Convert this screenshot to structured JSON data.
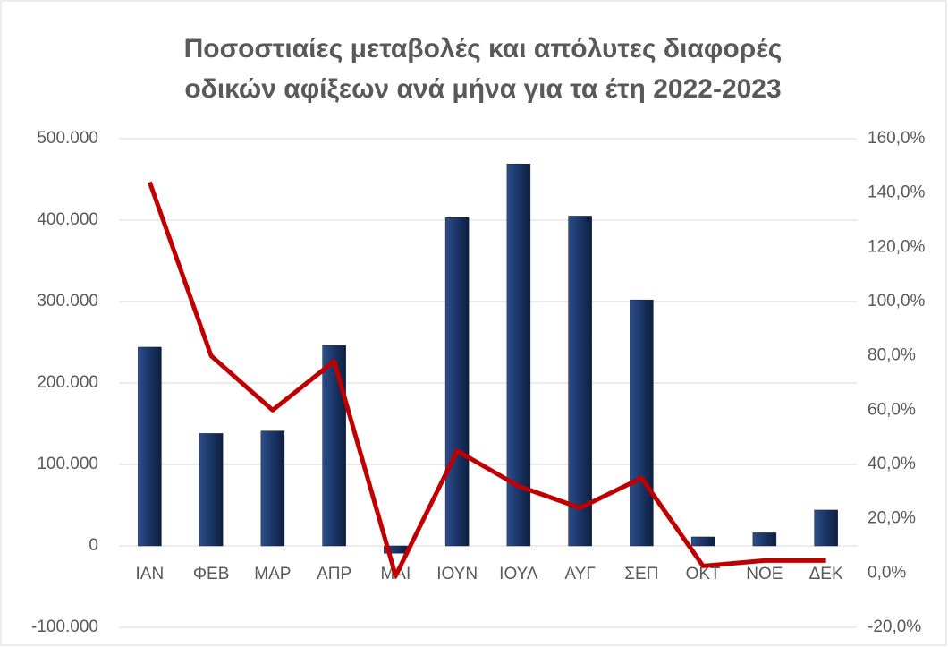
{
  "chart_data": {
    "type": "bar_line",
    "title": [
      "Ποσοστιαίες μεταβολές και απόλυτες διαφορές",
      "οδικών αφίξεων ανά μήνα για τα έτη 2022-2023"
    ],
    "categories": [
      "ΙΑΝ",
      "ΦΕΒ",
      "ΜΑΡ",
      "ΑΠΡ",
      "ΜΑΙ",
      "ΙΟΥΝ",
      "ΙΟΥΛ",
      "ΑΥΓ",
      "ΣΕΠ",
      "ΟΚΤ",
      "ΝΟΕ",
      "ΔΕΚ"
    ],
    "series": [
      {
        "type": "bar",
        "color": "#1f3864",
        "values": [
          244000,
          138000,
          141000,
          246000,
          -9000,
          403000,
          469000,
          405000,
          302000,
          11000,
          16000,
          44000
        ]
      },
      {
        "type": "line",
        "axis": "y2",
        "color": "#c00000",
        "values": [
          144,
          80,
          60,
          78,
          -1,
          45,
          32,
          24,
          35,
          2.6,
          4.6,
          4.6
        ]
      }
    ],
    "ylim": [
      -100000,
      500000
    ],
    "yticks": [
      {
        "value": -100000,
        "label": "-100.000"
      },
      0,
      {
        "value": 100000,
        "label": "100.000"
      },
      {
        "value": 200000,
        "label": "200.000"
      },
      {
        "value": 300000,
        "label": "300.000"
      },
      {
        "value": 400000,
        "label": "400.000"
      },
      {
        "value": 500000,
        "label": "500.000"
      }
    ],
    "y2lim": [
      -20,
      160
    ],
    "y2ticks": [
      {
        "value": -20,
        "label": "-20,0%"
      },
      {
        "value": 0,
        "label": "0,0%"
      },
      {
        "value": 20,
        "label": "20,0%"
      },
      {
        "value": 40,
        "label": "40,0%"
      },
      {
        "value": 60,
        "label": "60,0%"
      },
      {
        "value": 80,
        "label": "80,0%"
      },
      {
        "value": 100,
        "label": "100,0%"
      },
      {
        "value": 120,
        "label": "120,0%"
      },
      {
        "value": 140,
        "label": "140,0%"
      },
      {
        "value": 160,
        "label": "160,0%"
      }
    ],
    "grid": true
  }
}
